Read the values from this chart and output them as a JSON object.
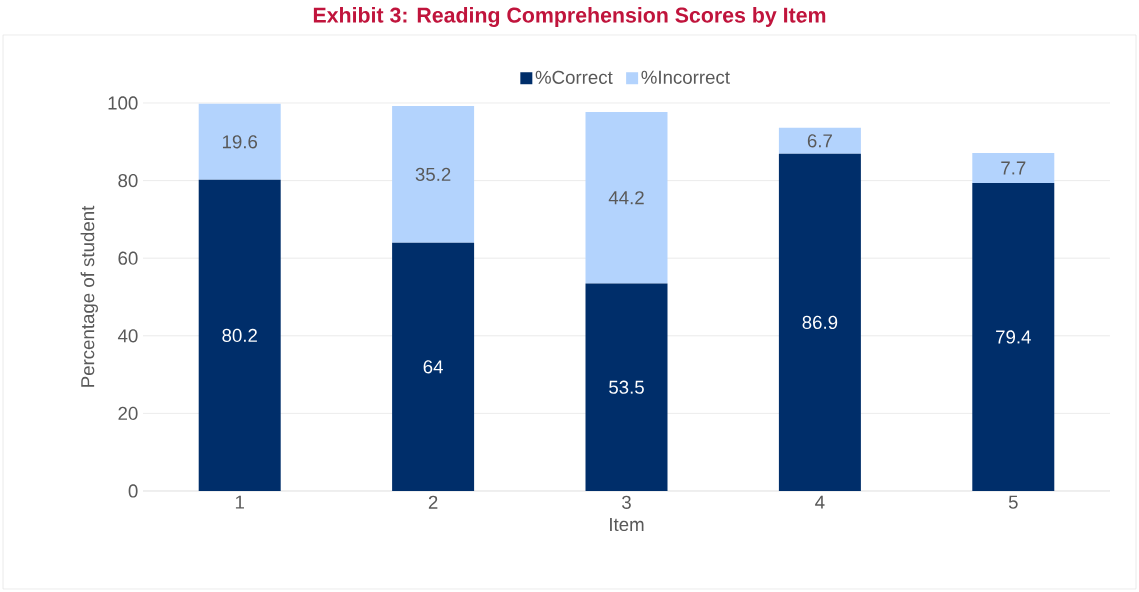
{
  "chart_data": {
    "type": "bar",
    "stacked": true,
    "title": "Exhibit 3: Reading Comprehension Scores by Item",
    "xlabel": "Item",
    "ylabel": "Percentage of student",
    "categories": [
      "1",
      "2",
      "3",
      "4",
      "5"
    ],
    "series": [
      {
        "name": "%Correct",
        "color": "#002e6a",
        "values": [
          80.2,
          64,
          53.5,
          86.9,
          79.4
        ]
      },
      {
        "name": "%Incorrect",
        "color": "#b3d3fd",
        "values": [
          19.6,
          35.2,
          44.2,
          6.7,
          7.7
        ]
      }
    ],
    "ylim": [
      0,
      100
    ],
    "yticks": [
      0,
      20,
      40,
      60,
      80,
      100
    ],
    "grid": "y",
    "legend": "top",
    "data_labels": true
  }
}
